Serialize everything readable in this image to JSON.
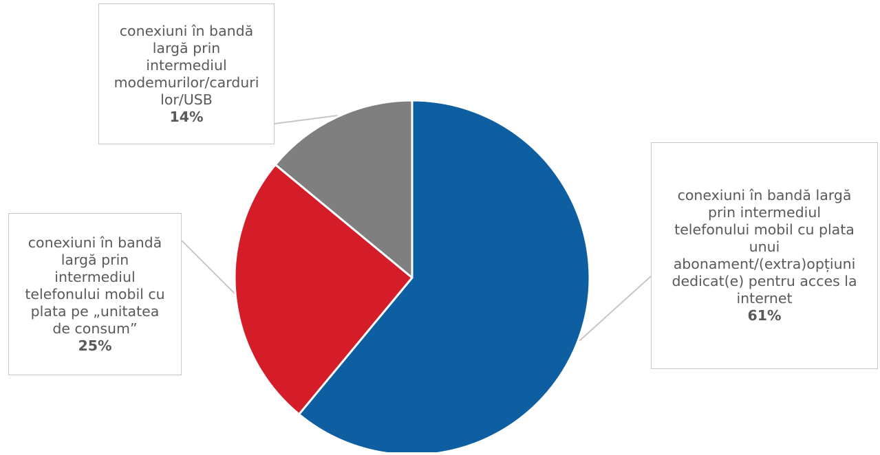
{
  "chart_data": {
    "type": "pie",
    "title": "",
    "series": [
      {
        "values": [
          61,
          25,
          14
        ]
      }
    ],
    "slices": [
      {
        "label": "conexiuni în bandă largă prin intermediul telefonului mobil cu plata unui abonament/(extra)opțiuni dedicat(e) pentru acces la internet",
        "value": 61,
        "value_label": "61%",
        "color": "#0e5fa2"
      },
      {
        "label": "conexiuni în bandă largă prin intermediul telefonului mobil cu plata pe „unitatea de consum”",
        "value": 25,
        "value_label": "25%",
        "color": "#d51d2a"
      },
      {
        "label": "conexiuni în bandă largă prin intermediul modemurilor/cardurilor/USB",
        "value": 14,
        "value_label": "14%",
        "color": "#7f7f7f"
      }
    ],
    "legend": "none",
    "start_angle": "12 o'clock, clockwise"
  }
}
